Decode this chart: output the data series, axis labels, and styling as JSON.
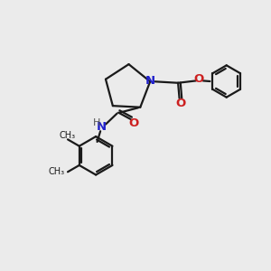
{
  "background_color": "#ebebeb",
  "bond_color": "#1a1a1a",
  "nitrogen_color": "#2020cc",
  "oxygen_color": "#cc2020",
  "h_color": "#555555",
  "methyl_color": "#1a1a1a",
  "figsize": [
    3.0,
    3.0
  ],
  "dpi": 100,
  "xlim": [
    0,
    10
  ],
  "ylim": [
    0,
    10
  ]
}
